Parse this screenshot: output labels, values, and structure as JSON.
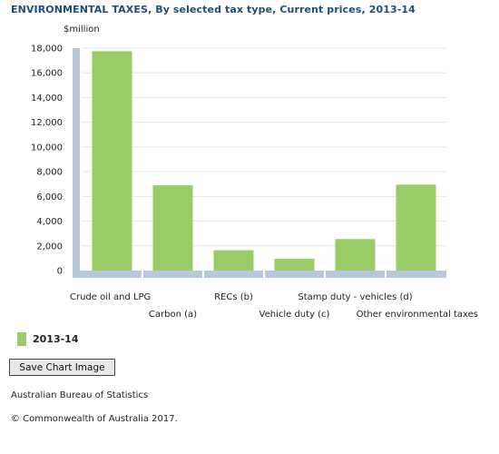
{
  "header": {
    "title": "ENVIRONMENTAL TAXES, By selected tax type, Current prices, 2013-14",
    "unit_label": "$million"
  },
  "chart_data": {
    "type": "bar",
    "title": "ENVIRONMENTAL TAXES, By selected tax type, Current prices, 2013-14",
    "ylabel": "$million",
    "xlabel": "",
    "categories": [
      "Crude oil and LPG",
      "Carbon (a)",
      "RECs (b)",
      "Vehicle duty (c)",
      "Stamp duty - vehicles (d)",
      "Other environmental taxes"
    ],
    "series": [
      {
        "name": "2013-14",
        "values": [
          17750,
          6900,
          1650,
          950,
          2550,
          6950
        ],
        "color": "#99cc66"
      }
    ],
    "ylim": [
      0,
      18000
    ],
    "yticks": [
      "0",
      "2,000",
      "4,000",
      "6,000",
      "8,000",
      "10,000",
      "12,000",
      "14,000",
      "16,000",
      "18,000"
    ],
    "grid": true,
    "legend_position": "bottom-left"
  },
  "legend": {
    "label": "2013-14",
    "color": "#99cc66"
  },
  "actions": {
    "save_label": "Save Chart Image"
  },
  "footer": {
    "source": "Australian Bureau of Statistics",
    "copyright": "© Commonwealth of Australia 2017."
  }
}
